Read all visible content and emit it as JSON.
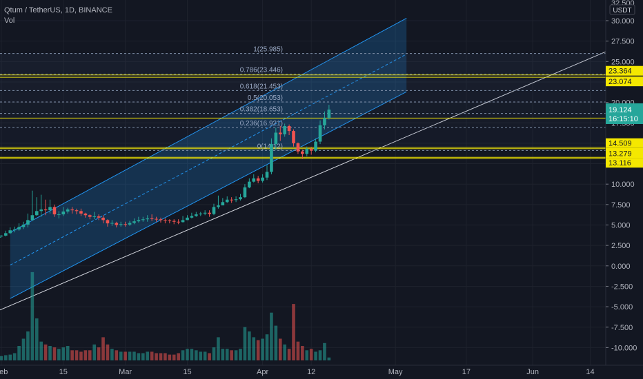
{
  "header": {
    "symbol": "Qtum / TetherUS",
    "separator1": ", ",
    "interval": "1D",
    "separator2": ", ",
    "exchange": "BINANCE",
    "indicator": "Vol"
  },
  "price_axis": {
    "currency": "USDT",
    "top_partial_label": "32.500",
    "last_price": "19.124",
    "countdown": "16:15:10",
    "last_price_color": "#26a69a",
    "level_tags": [
      "23.364",
      "23.074",
      "18.075",
      "14.509",
      "14.333",
      "13.279",
      "13.116"
    ],
    "level_color": "#f5e800"
  },
  "chart_data": {
    "type": "candlestick",
    "title": "",
    "y_ticks": [
      -10,
      -7.5,
      -5,
      -2.5,
      0,
      2.5,
      5,
      7.5,
      10,
      12.5,
      15,
      17.5,
      20,
      22.5,
      25,
      27.5,
      30
    ],
    "y_tick_labels": [
      "-10.000",
      "-7.500",
      "-5.000",
      "-2.500",
      "0.000",
      "2.500",
      "5.000",
      "7.500",
      "10.000",
      "12.500",
      "15.000",
      "17.500",
      "20.000",
      "22.500",
      "25.000",
      "27.500",
      "30.000"
    ],
    "ylim": [
      -11.3,
      32.6
    ],
    "x_labels": [
      {
        "day": 0,
        "label": "Feb"
      },
      {
        "day": 14,
        "label": "15"
      },
      {
        "day": 28,
        "label": "Mar"
      },
      {
        "day": 42,
        "label": "15"
      },
      {
        "day": 59,
        "label": "Apr"
      },
      {
        "day": 70,
        "label": "12"
      },
      {
        "day": 89,
        "label": "May"
      },
      {
        "day": 105,
        "label": "17"
      },
      {
        "day": 120,
        "label": "Jun"
      },
      {
        "day": 133,
        "label": "14"
      }
    ],
    "xlim": [
      -0.3,
      136.5
    ],
    "closes": [
      3.7,
      4.0,
      4.35,
      4.45,
      4.75,
      5.05,
      5.6,
      6.2,
      6.7,
      6.9,
      6.8,
      7.2,
      6.3,
      6.3,
      6.65,
      6.9,
      6.8,
      6.7,
      6.4,
      6.2,
      6.0,
      6.05,
      5.9,
      5.6,
      5.2,
      5.25,
      5.0,
      5.1,
      5.05,
      5.25,
      5.45,
      5.6,
      5.7,
      5.8,
      5.75,
      5.7,
      5.6,
      5.55,
      5.5,
      5.4,
      5.35,
      5.6,
      5.9,
      6.1,
      6.3,
      6.4,
      6.5,
      6.35,
      7.2,
      7.4,
      7.8,
      8.1,
      8.05,
      8.15,
      8.4,
      9.6,
      10.3,
      10.7,
      10.4,
      10.8,
      11.5,
      14.9,
      16.3,
      16.1,
      17.1,
      16.5,
      15.0,
      14.0,
      13.7,
      14.3,
      14.1,
      15.2,
      17.2,
      18.1,
      19.12
    ],
    "highs": [
      3.75,
      4.3,
      4.7,
      4.8,
      5.2,
      5.4,
      6.4,
      9.2,
      8.4,
      8.7,
      8.1,
      8.1,
      7.5,
      6.7,
      7.2,
      7.1,
      7.2,
      7.0,
      7.0,
      6.5,
      6.3,
      6.6,
      6.3,
      6.2,
      5.7,
      5.6,
      5.4,
      5.4,
      5.4,
      5.5,
      5.8,
      6.0,
      6.0,
      6.2,
      6.3,
      6.0,
      5.9,
      5.8,
      5.7,
      5.7,
      5.7,
      6.1,
      6.2,
      6.5,
      6.6,
      6.6,
      6.8,
      6.8,
      7.6,
      8.6,
      8.3,
      8.5,
      8.4,
      8.5,
      8.8,
      10.0,
      10.7,
      11.2,
      11.0,
      11.2,
      12.3,
      15.6,
      16.9,
      17.1,
      17.4,
      17.3,
      16.7,
      15.1,
      14.2,
      14.6,
      14.5,
      15.6,
      17.8,
      18.9,
      19.7
    ],
    "lows": [
      3.55,
      3.6,
      3.9,
      4.1,
      4.3,
      4.5,
      4.7,
      5.5,
      6.1,
      6.0,
      6.2,
      6.4,
      6.0,
      5.8,
      6.1,
      6.4,
      6.4,
      6.3,
      6.1,
      5.9,
      5.7,
      5.7,
      5.6,
      5.2,
      4.8,
      4.9,
      4.7,
      4.8,
      4.8,
      4.9,
      5.1,
      5.3,
      5.4,
      5.4,
      5.5,
      5.4,
      5.3,
      5.2,
      5.2,
      5.1,
      5.1,
      5.3,
      5.6,
      5.8,
      6.0,
      6.1,
      6.2,
      6.0,
      6.2,
      7.0,
      7.4,
      7.7,
      7.7,
      7.8,
      8.0,
      8.3,
      9.5,
      10.2,
      10.1,
      10.2,
      10.5,
      11.2,
      14.2,
      15.3,
      15.8,
      16.0,
      14.6,
      13.7,
      13.1,
      13.4,
      13.6,
      13.9,
      14.9,
      16.7,
      17.9
    ],
    "volume": [
      0.15,
      0.18,
      0.2,
      0.25,
      0.5,
      0.75,
      1.0,
      3.05,
      1.45,
      0.65,
      0.55,
      0.5,
      0.45,
      0.4,
      0.45,
      0.5,
      0.35,
      0.35,
      0.3,
      0.35,
      0.35,
      0.55,
      0.45,
      0.8,
      0.55,
      0.4,
      0.35,
      0.3,
      0.3,
      0.3,
      0.3,
      0.25,
      0.25,
      0.3,
      0.3,
      0.25,
      0.25,
      0.25,
      0.2,
      0.2,
      0.25,
      0.35,
      0.4,
      0.4,
      0.35,
      0.3,
      0.3,
      0.25,
      0.45,
      0.8,
      0.4,
      0.4,
      0.35,
      0.35,
      0.4,
      1.15,
      1.0,
      0.8,
      0.7,
      0.75,
      0.9,
      1.65,
      1.2,
      0.75,
      0.55,
      0.4,
      1.95,
      0.65,
      0.5,
      0.35,
      0.4,
      0.3,
      0.35,
      0.6,
      0.1
    ],
    "fib_levels": [
      {
        "ratio": "0",
        "value": 14.12,
        "label": "0(14.12)"
      },
      {
        "ratio": "0.236",
        "value": 16.921,
        "label": "0.236(16.921)"
      },
      {
        "ratio": "0.382",
        "value": 18.653,
        "label": "0.382(18.653)"
      },
      {
        "ratio": "0.5",
        "value": 20.053,
        "label": "0.5(20.053)"
      },
      {
        "ratio": "0.618",
        "value": 21.453,
        "label": "0.618(21.453)"
      },
      {
        "ratio": "0.786",
        "value": 23.446,
        "label": "0.786(23.446)"
      },
      {
        "ratio": "1",
        "value": 25.985,
        "label": "1(25.985)"
      }
    ],
    "horizontal_levels": [
      23.364,
      23.074,
      18.075,
      14.509,
      14.333,
      13.279,
      13.116
    ],
    "channel": {
      "start_day": 2.0,
      "end_day": 91.5,
      "lower_start": -4.0,
      "lower_end": 21.3,
      "upper_start": 4.1,
      "upper_end": 30.3,
      "mid_start": 0.1,
      "mid_end": 25.9
    },
    "trendline": {
      "x0": -0.3,
      "y0": -5.4,
      "x1": 136.5,
      "y1": 26.2
    },
    "grid": true
  }
}
